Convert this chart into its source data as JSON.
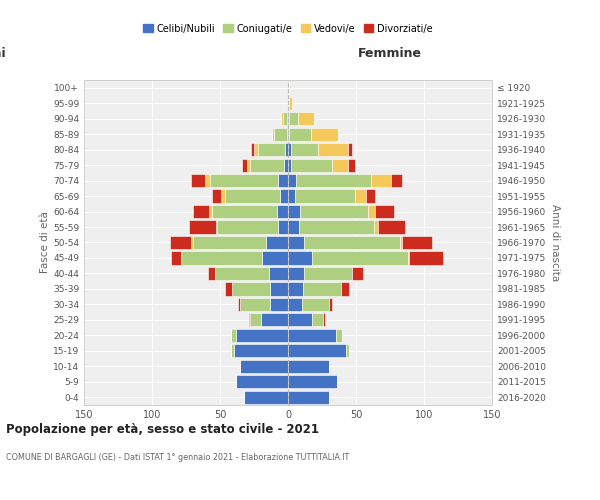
{
  "age_groups": [
    "0-4",
    "5-9",
    "10-14",
    "15-19",
    "20-24",
    "25-29",
    "30-34",
    "35-39",
    "40-44",
    "45-49",
    "50-54",
    "55-59",
    "60-64",
    "65-69",
    "70-74",
    "75-79",
    "80-84",
    "85-89",
    "90-94",
    "95-99",
    "100+"
  ],
  "birth_years": [
    "2016-2020",
    "2011-2015",
    "2006-2010",
    "2001-2005",
    "1996-2000",
    "1991-1995",
    "1986-1990",
    "1981-1985",
    "1976-1980",
    "1971-1975",
    "1966-1970",
    "1961-1965",
    "1956-1960",
    "1951-1955",
    "1946-1950",
    "1941-1945",
    "1936-1940",
    "1931-1935",
    "1926-1930",
    "1921-1925",
    "≤ 1920"
  ],
  "colors": {
    "celibi": "#4472C4",
    "coniugati": "#AECF80",
    "vedovi": "#F5C85C",
    "divorziati": "#CC2B1D"
  },
  "males": {
    "celibi": [
      32,
      38,
      35,
      40,
      38,
      20,
      13,
      13,
      14,
      19,
      16,
      7,
      8,
      6,
      7,
      3,
      2,
      1,
      1,
      0,
      0
    ],
    "coniugati": [
      0,
      0,
      0,
      2,
      4,
      8,
      22,
      28,
      40,
      60,
      54,
      45,
      48,
      40,
      50,
      25,
      20,
      9,
      3,
      0,
      0
    ],
    "vedovi": [
      0,
      0,
      0,
      0,
      0,
      0,
      0,
      0,
      0,
      0,
      1,
      1,
      2,
      3,
      4,
      2,
      3,
      2,
      1,
      0,
      0
    ],
    "divorziati": [
      0,
      0,
      0,
      0,
      0,
      1,
      2,
      5,
      5,
      7,
      16,
      20,
      12,
      7,
      10,
      4,
      2,
      0,
      0,
      0,
      0
    ]
  },
  "females": {
    "celibi": [
      30,
      36,
      30,
      43,
      35,
      18,
      10,
      11,
      12,
      18,
      12,
      8,
      9,
      5,
      6,
      2,
      2,
      1,
      1,
      0,
      0
    ],
    "coniugati": [
      0,
      0,
      0,
      2,
      5,
      8,
      20,
      28,
      35,
      70,
      70,
      55,
      50,
      44,
      55,
      30,
      20,
      16,
      6,
      1,
      0
    ],
    "vedovi": [
      0,
      0,
      0,
      0,
      0,
      0,
      0,
      0,
      0,
      1,
      2,
      3,
      5,
      8,
      15,
      12,
      22,
      20,
      12,
      2,
      1
    ],
    "divorziati": [
      0,
      0,
      0,
      0,
      0,
      1,
      2,
      6,
      8,
      25,
      22,
      20,
      14,
      7,
      8,
      5,
      3,
      0,
      0,
      0,
      0
    ]
  },
  "xlim": 150,
  "title": "Popolazione per età, sesso e stato civile - 2021",
  "subtitle": "COMUNE DI BARGAGLI (GE) - Dati ISTAT 1° gennaio 2021 - Elaborazione TUTTITALIA.IT",
  "ylabel_left": "Fasce di età",
  "ylabel_right": "Anni di nascita",
  "header_right": "Femmine",
  "legend_labels": [
    "Celibi/Nubili",
    "Coniugati/e",
    "Vedovi/e",
    "Divorziati/e"
  ],
  "bg_color": "#EFEFEF",
  "grid_color": "#FFFFFF",
  "spine_color": "#CCCCCC"
}
